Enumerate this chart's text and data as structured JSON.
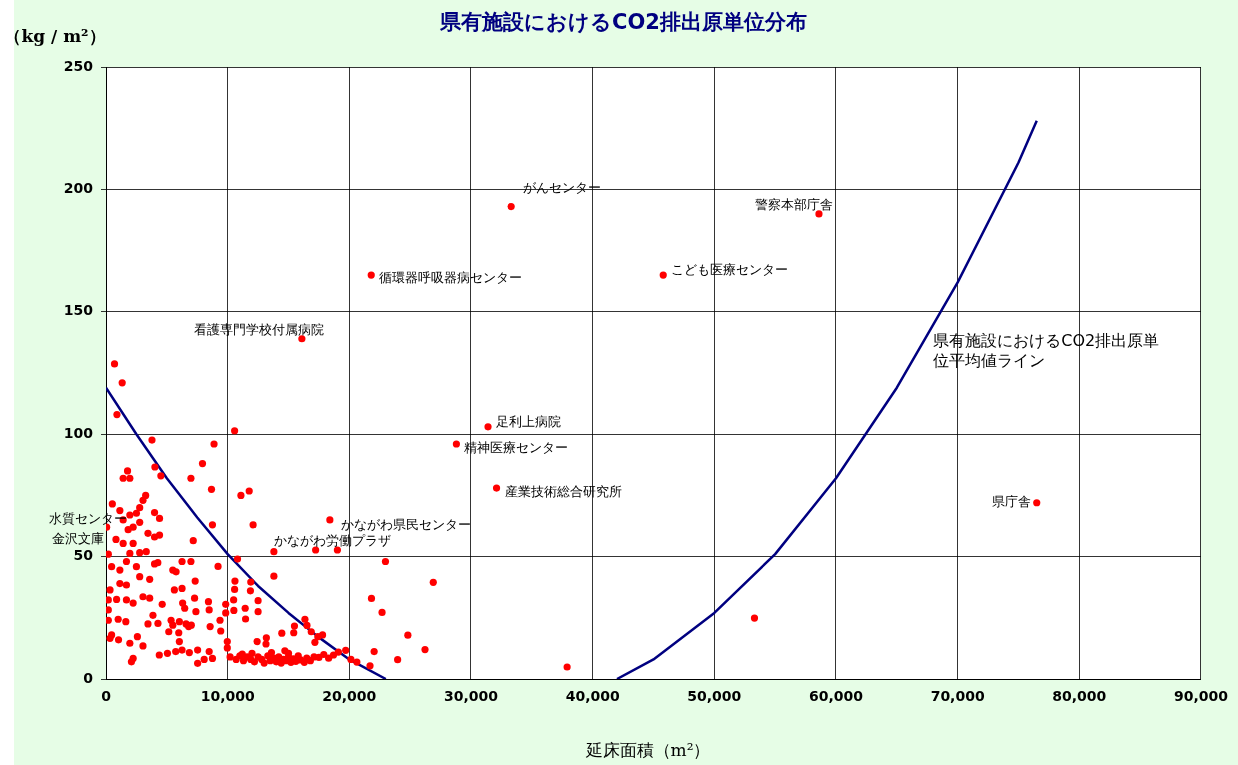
{
  "chart_data": {
    "type": "scatter",
    "title": "県有施設におけるCO2排出原単位分布",
    "xlabel": "延床面積（m²）",
    "ylabel": "（kg / m²）",
    "xlim": [
      0,
      90000
    ],
    "ylim": [
      0,
      250
    ],
    "xticks": [
      0,
      {
        "value": 10000,
        "label": "10,000"
      },
      {
        "value": 20000,
        "label": "20,000"
      },
      {
        "value": 30000,
        "label": "30,000"
      },
      {
        "value": 40000,
        "label": "40,000"
      },
      {
        "value": 50000,
        "label": "50,000"
      },
      {
        "value": 60000,
        "label": "60,000"
      },
      {
        "value": 70000,
        "label": "70,000"
      },
      {
        "value": 80000,
        "label": "80,000"
      },
      {
        "value": 90000,
        "label": "90,000"
      }
    ],
    "yticks": [
      0,
      50,
      100,
      150,
      200,
      250
    ],
    "grid": true,
    "legend": false,
    "marker": "circle",
    "series": [
      {
        "type": "scatter",
        "color": "#ff0000",
        "x": [
          33300,
          58600,
          21800,
          45800,
          16100,
          31400,
          28800,
          32100,
          76500,
          50,
          190,
          18400,
          13800,
          700,
          1330,
          900,
          3780,
          4020,
          1770,
          1410,
          1960,
          4510,
          6980,
          7930,
          8880,
          8670,
          10570,
          11090,
          11770,
          12090,
          8750,
          7170,
          10810,
          9210,
          10570,
          11870,
          10510,
          11470,
          12500,
          13800,
          15490,
          16350,
          14450,
          13150,
          9970,
          3260,
          3040,
          2770,
          2500,
          3990,
          4400,
          1960,
          1140,
          520,
          1410,
          1820,
          2230,
          2770,
          3450,
          3990,
          4400,
          820,
          1410,
          2230,
          3310,
          1960,
          2770,
          460,
          1140,
          1680,
          2500,
          3990,
          4260,
          330,
          1140,
          1680,
          2770,
          3590,
          190,
          870,
          1680,
          2230,
          3040,
          3590,
          190,
          190,
          1000,
          1630,
          460,
          330,
          1030,
          1960,
          2580,
          3040,
          2230,
          2090,
          3450,
          3860,
          4270,
          4620,
          5490,
          5760,
          6250,
          6980,
          5620,
          6250,
          7330,
          6300,
          6470,
          7280,
          7390,
          8420,
          8480,
          9370,
          9840,
          5350,
          5490,
          6030,
          6580,
          6790,
          7010,
          8560,
          9430,
          5160,
          5980,
          6030,
          4380,
          5050,
          5730,
          6250,
          6850,
          7530,
          7530,
          8070,
          8480,
          8750,
          10200,
          10700,
          11000,
          11300,
          11600,
          11900,
          12200,
          12500,
          12800,
          13000,
          13300,
          13500,
          13800,
          14000,
          14200,
          14400,
          14600,
          14800,
          15000,
          15200,
          15400,
          15600,
          15800,
          16000,
          16300,
          16500,
          16800,
          17100,
          17500,
          17900,
          18300,
          18700,
          19100,
          12000,
          13600,
          15000,
          11200,
          14700,
          17230,
          19020,
          22970,
          26900,
          21820,
          22690,
          24810,
          26220,
          23970,
          22040,
          21700,
          20130,
          20620,
          19700,
          16520,
          15430,
          16870,
          17410,
          17800,
          17170,
          13180,
          12420,
          9970,
          10600,
          11900,
          10490,
          12500,
          11440,
          9840,
          37900,
          53300
        ],
        "values": [
          193,
          190,
          165,
          165,
          139,
          103,
          96,
          78,
          72,
          62,
          51,
          65,
          52,
          128.7,
          121,
          108,
          97.6,
          86.6,
          85,
          82,
          82,
          83,
          82,
          88,
          96,
          77.5,
          101.4,
          75,
          76.8,
          63,
          63,
          56.5,
          49,
          46,
          36.6,
          36,
          28,
          24.5,
          27.5,
          42,
          21.6,
          24.4,
          18.7,
          14.3,
          12.7,
          75,
          73,
          70,
          67.7,
          68,
          65.6,
          67,
          68.8,
          71.5,
          65,
          61,
          62,
          64,
          59.5,
          58,
          58.8,
          57,
          55.4,
          55.4,
          52,
          51.3,
          51.6,
          45.9,
          44.5,
          48,
          45.9,
          47,
          47.5,
          36.4,
          39,
          38.4,
          41.8,
          40.7,
          32.3,
          32.5,
          32.3,
          31,
          33.6,
          33,
          28.2,
          24,
          24.4,
          23.4,
          18,
          16.6,
          16,
          14.6,
          17.3,
          13.5,
          8.4,
          7,
          22.5,
          26,
          22.7,
          30.5,
          44.5,
          43.8,
          48,
          48,
          36.4,
          37,
          40,
          31,
          28.9,
          33,
          27.5,
          31.6,
          28.2,
          24,
          27,
          24,
          22,
          23.4,
          22.5,
          21.4,
          22,
          21.4,
          19.6,
          19.3,
          18.9,
          15.3,
          9.8,
          10.5,
          11.2,
          11.8,
          10.8,
          11.8,
          6.4,
          8,
          11.2,
          8.4,
          9,
          8,
          9.5,
          7.5,
          9,
          8,
          7,
          9,
          8,
          6.5,
          9.5,
          7.5,
          8.5,
          7,
          9,
          6.5,
          8,
          7.5,
          9,
          6.8,
          8.2,
          7.2,
          9.5,
          7.8,
          6.8,
          8.5,
          7.5,
          9,
          8.8,
          10,
          8.5,
          9.8,
          11,
          10.5,
          10.8,
          10.5,
          10.2,
          11.5,
          52.7,
          52.7,
          48,
          39.5,
          32.9,
          27.2,
          17.9,
          12,
          7.9,
          11.2,
          5.4,
          8,
          6.9,
          11.7,
          21.9,
          18.9,
          19.3,
          17.3,
          18,
          15,
          16.8,
          15.3,
          15.3,
          40,
          39.6,
          32.3,
          32,
          28.9,
          30.5,
          4.9,
          24.9
        ]
      },
      {
        "type": "line",
        "color": "#000080",
        "marker": "none",
        "x": [
          0,
          2500,
          5000,
          7500,
          10000,
          12500,
          15000,
          17500,
          20000,
          23000,
          30000,
          42000,
          45000,
          50000,
          55000,
          60000,
          65000,
          70000,
          75000,
          76500
        ],
        "values": [
          119,
          100,
          82,
          66,
          51,
          38,
          27,
          17,
          8,
          0,
          null,
          0,
          8,
          27,
          51,
          82,
          119,
          162,
          211,
          228
        ]
      }
    ],
    "annotations": [
      {
        "text": "がんセンター",
        "x": 33300,
        "y": 193
      },
      {
        "text": "警察本部庁舎",
        "x": 58600,
        "y": 190
      },
      {
        "text": "循環器呼吸器病センター",
        "x": 21800,
        "y": 165
      },
      {
        "text": "こども医療センター",
        "x": 45800,
        "y": 165
      },
      {
        "text": "看護専門学校付属病院",
        "x": 16100,
        "y": 139
      },
      {
        "text": "足利上病院",
        "x": 31400,
        "y": 103
      },
      {
        "text": "精神医療センター",
        "x": 28800,
        "y": 96
      },
      {
        "text": "産業技術総合研究所",
        "x": 32100,
        "y": 78
      },
      {
        "text": "県庁舎",
        "x": 76500,
        "y": 72
      },
      {
        "text": "水質センター",
        "x": 50,
        "y": 62
      },
      {
        "text": "金沢文庫",
        "x": 190,
        "y": 51
      },
      {
        "text": "かながわ県民センター",
        "x": 18400,
        "y": 65
      },
      {
        "text": "かながわ労働プラザ",
        "x": 13800,
        "y": 52
      },
      {
        "text": "県有施設におけるCO2排出原単位平均値ライン",
        "x": 68000,
        "y": 140
      }
    ]
  }
}
